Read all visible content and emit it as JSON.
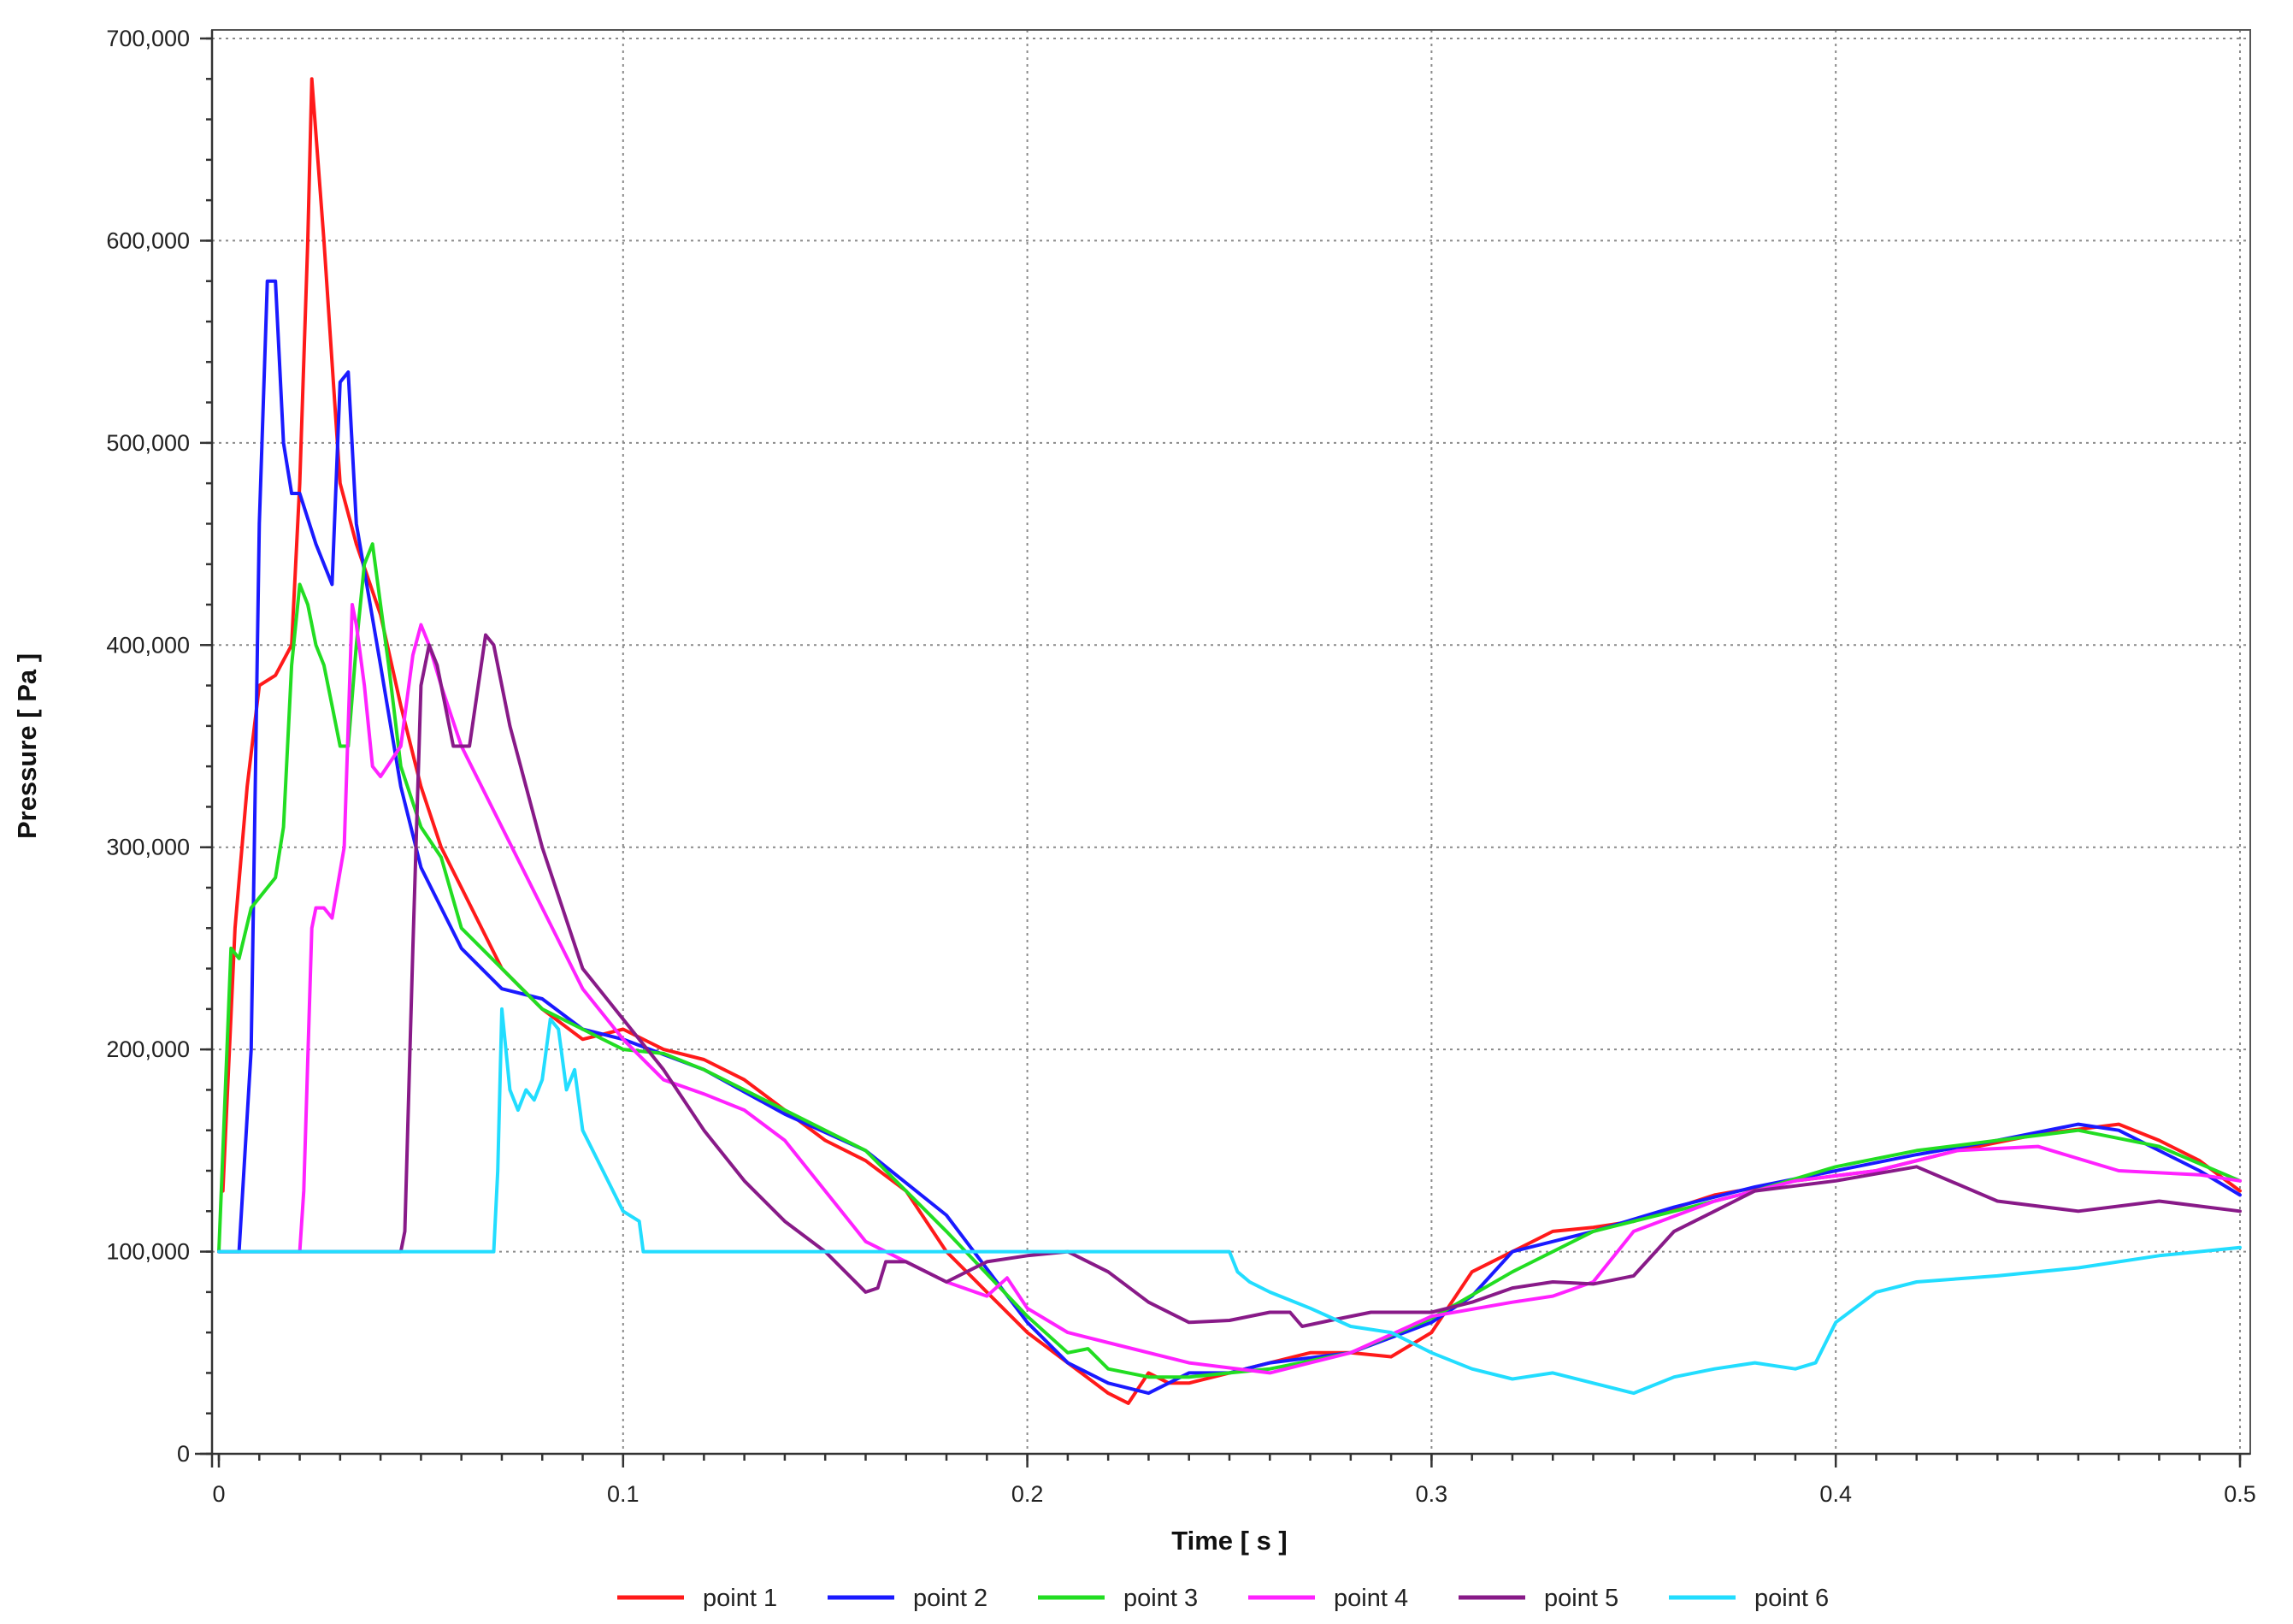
{
  "chart_data": {
    "type": "line",
    "title": "",
    "xlabel": "Time [ s ]",
    "ylabel": "Pressure [ Pa ]",
    "xlim": [
      0,
      0.5
    ],
    "ylim": [
      0,
      700000
    ],
    "x_ticks": [
      0,
      0.1,
      0.2,
      0.3,
      0.4,
      0.5
    ],
    "x_tick_labels": [
      "0",
      "0.1",
      "0.2",
      "0.3",
      "0.4",
      "0.5"
    ],
    "y_ticks": [
      0,
      100000,
      200000,
      300000,
      400000,
      500000,
      600000,
      700000
    ],
    "y_tick_labels": [
      "0",
      "100,000",
      "200,000",
      "300,000",
      "400,000",
      "500,000",
      "600,000",
      "700,000"
    ],
    "grid": true,
    "legend_position": "bottom",
    "series": [
      {
        "name": "point 1",
        "color": "#ff1a1a",
        "x": [
          0.001,
          0.004,
          0.007,
          0.01,
          0.014,
          0.018,
          0.02,
          0.022,
          0.023,
          0.026,
          0.03,
          0.034,
          0.04,
          0.045,
          0.05,
          0.055,
          0.06,
          0.07,
          0.08,
          0.09,
          0.1,
          0.11,
          0.12,
          0.13,
          0.14,
          0.15,
          0.16,
          0.17,
          0.18,
          0.19,
          0.2,
          0.21,
          0.22,
          0.225,
          0.23,
          0.235,
          0.24,
          0.25,
          0.26,
          0.27,
          0.28,
          0.29,
          0.3,
          0.305,
          0.31,
          0.32,
          0.33,
          0.34,
          0.35,
          0.37,
          0.39,
          0.41,
          0.43,
          0.45,
          0.47,
          0.48,
          0.49,
          0.5
        ],
        "y": [
          130000,
          260000,
          330000,
          380000,
          385000,
          400000,
          480000,
          600000,
          680000,
          600000,
          480000,
          450000,
          415000,
          370000,
          330000,
          300000,
          280000,
          240000,
          220000,
          205000,
          210000,
          200000,
          195000,
          185000,
          170000,
          155000,
          145000,
          130000,
          100000,
          80000,
          60000,
          45000,
          30000,
          25000,
          40000,
          35000,
          35000,
          40000,
          45000,
          50000,
          50000,
          48000,
          60000,
          75000,
          90000,
          100000,
          110000,
          112000,
          115000,
          128000,
          135000,
          140000,
          150000,
          158000,
          163000,
          155000,
          145000,
          130000
        ]
      },
      {
        "name": "point 2",
        "color": "#1a1aff",
        "x": [
          0,
          0.005,
          0.008,
          0.01,
          0.012,
          0.014,
          0.016,
          0.018,
          0.02,
          0.024,
          0.028,
          0.03,
          0.032,
          0.034,
          0.04,
          0.045,
          0.05,
          0.06,
          0.07,
          0.08,
          0.09,
          0.1,
          0.12,
          0.14,
          0.16,
          0.18,
          0.2,
          0.21,
          0.22,
          0.23,
          0.24,
          0.25,
          0.26,
          0.28,
          0.3,
          0.31,
          0.32,
          0.34,
          0.36,
          0.38,
          0.4,
          0.42,
          0.44,
          0.46,
          0.47,
          0.48,
          0.49,
          0.5
        ],
        "y": [
          100000,
          100000,
          200000,
          460000,
          580000,
          580000,
          500000,
          475000,
          475000,
          450000,
          430000,
          530000,
          535000,
          460000,
          390000,
          330000,
          290000,
          250000,
          230000,
          225000,
          210000,
          205000,
          190000,
          168000,
          150000,
          118000,
          65000,
          45000,
          35000,
          30000,
          40000,
          40000,
          45000,
          50000,
          65000,
          78000,
          100000,
          110000,
          122000,
          132000,
          140000,
          148000,
          155000,
          163000,
          160000,
          150000,
          140000,
          128000
        ]
      },
      {
        "name": "point 3",
        "color": "#22dd22",
        "x": [
          0,
          0.003,
          0.005,
          0.008,
          0.01,
          0.012,
          0.014,
          0.016,
          0.018,
          0.02,
          0.022,
          0.024,
          0.026,
          0.028,
          0.03,
          0.032,
          0.034,
          0.036,
          0.038,
          0.04,
          0.042,
          0.045,
          0.05,
          0.055,
          0.06,
          0.07,
          0.08,
          0.09,
          0.1,
          0.11,
          0.12,
          0.14,
          0.16,
          0.18,
          0.2,
          0.21,
          0.215,
          0.22,
          0.23,
          0.24,
          0.25,
          0.26,
          0.28,
          0.3,
          0.32,
          0.34,
          0.36,
          0.38,
          0.4,
          0.42,
          0.44,
          0.46,
          0.48,
          0.5
        ],
        "y": [
          100000,
          250000,
          245000,
          270000,
          275000,
          280000,
          285000,
          310000,
          390000,
          430000,
          420000,
          400000,
          390000,
          370000,
          350000,
          350000,
          400000,
          440000,
          450000,
          420000,
          390000,
          340000,
          310000,
          295000,
          260000,
          240000,
          220000,
          210000,
          200000,
          198000,
          190000,
          170000,
          150000,
          110000,
          68000,
          50000,
          52000,
          42000,
          38000,
          38000,
          40000,
          42000,
          50000,
          67000,
          90000,
          110000,
          120000,
          130000,
          142000,
          150000,
          155000,
          160000,
          152000,
          135000
        ]
      },
      {
        "name": "point 4",
        "color": "#ff22ff",
        "x": [
          0,
          0.02,
          0.021,
          0.023,
          0.024,
          0.026,
          0.028,
          0.031,
          0.033,
          0.034,
          0.036,
          0.038,
          0.04,
          0.045,
          0.048,
          0.05,
          0.052,
          0.055,
          0.06,
          0.07,
          0.08,
          0.09,
          0.1,
          0.11,
          0.12,
          0.13,
          0.14,
          0.15,
          0.16,
          0.17,
          0.18,
          0.19,
          0.195,
          0.2,
          0.21,
          0.22,
          0.24,
          0.26,
          0.28,
          0.3,
          0.32,
          0.33,
          0.34,
          0.35,
          0.37,
          0.39,
          0.41,
          0.43,
          0.45,
          0.47,
          0.49,
          0.5
        ],
        "y": [
          100000,
          100000,
          130000,
          260000,
          270000,
          270000,
          265000,
          300000,
          420000,
          410000,
          380000,
          340000,
          335000,
          350000,
          395000,
          410000,
          400000,
          380000,
          350000,
          310000,
          270000,
          230000,
          205000,
          185000,
          178000,
          170000,
          155000,
          130000,
          105000,
          95000,
          85000,
          78000,
          87000,
          72000,
          60000,
          55000,
          45000,
          40000,
          50000,
          68000,
          75000,
          78000,
          85000,
          110000,
          125000,
          135000,
          140000,
          150000,
          152000,
          140000,
          138000,
          135000
        ]
      },
      {
        "name": "point 5",
        "color": "#881a88",
        "x": [
          0,
          0.045,
          0.046,
          0.048,
          0.05,
          0.052,
          0.054,
          0.058,
          0.062,
          0.066,
          0.068,
          0.072,
          0.08,
          0.09,
          0.1,
          0.11,
          0.12,
          0.13,
          0.14,
          0.15,
          0.16,
          0.163,
          0.165,
          0.17,
          0.18,
          0.19,
          0.2,
          0.21,
          0.22,
          0.23,
          0.24,
          0.25,
          0.26,
          0.265,
          0.268,
          0.275,
          0.285,
          0.3,
          0.31,
          0.32,
          0.33,
          0.34,
          0.35,
          0.36,
          0.37,
          0.38,
          0.4,
          0.42,
          0.44,
          0.46,
          0.48,
          0.5
        ],
        "y": [
          100000,
          100000,
          110000,
          250000,
          380000,
          400000,
          390000,
          350000,
          350000,
          405000,
          400000,
          360000,
          300000,
          240000,
          215000,
          190000,
          160000,
          135000,
          115000,
          100000,
          80000,
          82000,
          95000,
          95000,
          85000,
          95000,
          98000,
          100000,
          90000,
          75000,
          65000,
          66000,
          70000,
          70000,
          63000,
          66000,
          70000,
          70000,
          75000,
          82000,
          85000,
          84000,
          88000,
          110000,
          120000,
          130000,
          135000,
          142000,
          125000,
          120000,
          125000,
          120000
        ]
      },
      {
        "name": "point 6",
        "color": "#22ddff",
        "x": [
          0,
          0.068,
          0.069,
          0.07,
          0.072,
          0.074,
          0.076,
          0.078,
          0.08,
          0.082,
          0.084,
          0.086,
          0.088,
          0.09,
          0.095,
          0.1,
          0.104,
          0.105,
          0.25,
          0.252,
          0.255,
          0.26,
          0.27,
          0.28,
          0.29,
          0.3,
          0.31,
          0.32,
          0.33,
          0.34,
          0.35,
          0.36,
          0.37,
          0.38,
          0.39,
          0.395,
          0.4,
          0.41,
          0.42,
          0.44,
          0.46,
          0.48,
          0.5
        ],
        "y": [
          100000,
          100000,
          140000,
          220000,
          180000,
          170000,
          180000,
          175000,
          185000,
          215000,
          210000,
          180000,
          190000,
          160000,
          140000,
          120000,
          115000,
          100000,
          100000,
          90000,
          85000,
          80000,
          72000,
          63000,
          60000,
          50000,
          42000,
          37000,
          40000,
          35000,
          30000,
          38000,
          42000,
          45000,
          42000,
          45000,
          65000,
          80000,
          85000,
          88000,
          92000,
          98000,
          102000
        ]
      }
    ]
  }
}
